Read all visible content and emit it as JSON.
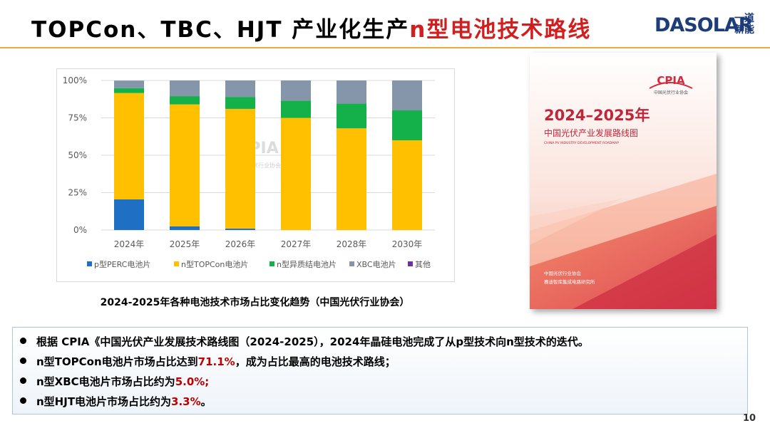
{
  "header": {
    "title_main": "TOPCon、TBC、HJT 产业化生产",
    "title_highlight": "n型电池技术路线",
    "logo_text": "DASOLAR",
    "logo_sub": "一道新能"
  },
  "chart_data": {
    "type": "bar",
    "stacked": true,
    "categories": [
      "2024年",
      "2025年",
      "2026年",
      "2027年",
      "2028年",
      "2030年"
    ],
    "y_ticks": [
      "0%",
      "25%",
      "50%",
      "75%",
      "100%"
    ],
    "ylim": [
      0,
      100
    ],
    "watermark": "CPIA",
    "watermark_sub": "中国光伏行业协会",
    "legend_position": "bottom",
    "series": [
      {
        "name": "p型PERC电池片",
        "color": "#1f6fc4",
        "values": [
          20.5,
          2.5,
          1.0,
          0,
          0,
          0
        ]
      },
      {
        "name": "n型TOPCon电池片",
        "color": "#ffc000",
        "values": [
          71.1,
          81.5,
          80.0,
          75.0,
          68.0,
          60.0
        ]
      },
      {
        "name": "n型异质结电池片",
        "color": "#14b04a",
        "values": [
          3.3,
          5.5,
          8.0,
          11.5,
          16.5,
          20.0
        ]
      },
      {
        "name": "XBC电池片",
        "color": "#8696aa",
        "values": [
          5.0,
          10.5,
          11.0,
          13.5,
          15.5,
          20.0
        ]
      },
      {
        "name": "其他",
        "color": "#7030a0",
        "values": [
          0,
          0,
          0,
          0,
          0,
          0
        ]
      }
    ]
  },
  "chart_caption": "2024-2025年各种电池技术市场占比变化趋势（中国光伏行业协会）",
  "cover": {
    "logo": "CPIA",
    "logo_sub": "中国光伏行业协会",
    "year": "2024–2025年",
    "name_cn": "中国光伏产业发展路线图",
    "name_en": "CHINA PV INDUSTRY DEVELOPMENT ROADMAP",
    "publisher_1": "中国光伏行业协会",
    "publisher_2": "赛迪智库集成电路研究所"
  },
  "bullets": [
    {
      "text": "根据 CPIA《中国光伏产业发展技术路线图（2024-2025），2024年晶硅电池完成了从p型技术向n型技术的迭代。",
      "highlight": "",
      "suffix": ""
    },
    {
      "text": "n型TOPCon电池片市场占比达到",
      "highlight": "71.1%",
      "suffix": "，成为占比最高的电池技术路线；"
    },
    {
      "text": "n型XBC电池片市场占比约为",
      "highlight": "5.0%;",
      "suffix": ""
    },
    {
      "text": "n型HJT电池片市场占比约为",
      "highlight": "3.3%",
      "suffix": "。"
    }
  ],
  "page_number": "10",
  "colors": {
    "accent_red": "#d11f1f",
    "title_line": "#e3ad3a",
    "logo_blue": "#1d3c7a"
  }
}
